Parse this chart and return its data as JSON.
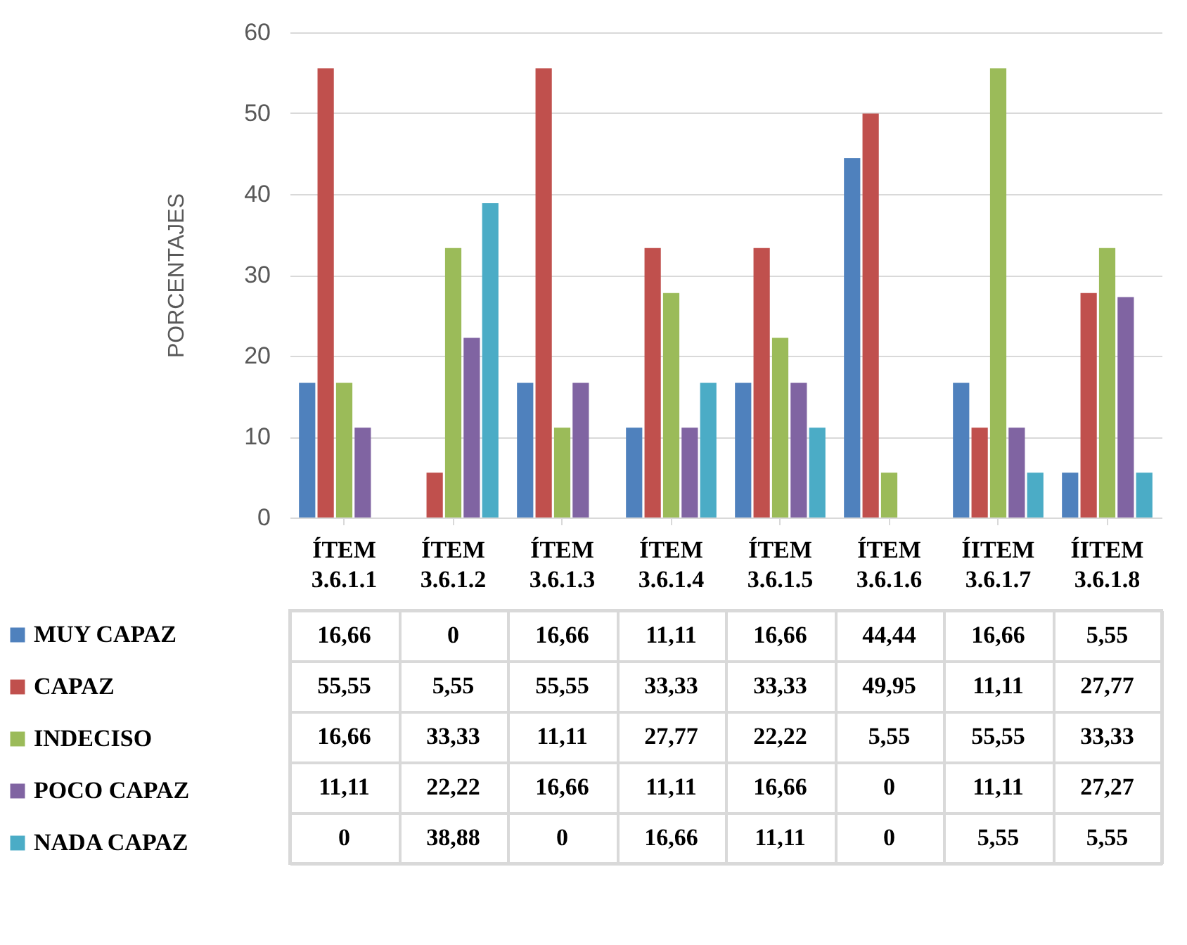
{
  "chart_data": {
    "type": "bar",
    "ylabel": "PORCENTAJES",
    "categories": [
      "ÍTEM 3.6.1.1",
      "ÍTEM 3.6.1.2",
      "ÍTEM 3.6.1.3",
      "ÍTEM 3.6.1.4",
      "ÍTEM 3.6.1.5",
      "ÍTEM 3.6.1.6",
      "ÍITEM 3.6.1.7",
      "ÍITEM 3.6.1.8"
    ],
    "series": [
      {
        "name": "MUY CAPAZ",
        "color": "#4f81bd",
        "values": [
          16.66,
          0,
          16.66,
          11.11,
          16.66,
          44.44,
          16.66,
          5.55
        ],
        "value_labels": [
          "16,66",
          "0",
          "16,66",
          "11,11",
          "16,66",
          "44,44",
          "16,66",
          "5,55"
        ]
      },
      {
        "name": "CAPAZ",
        "color": "#c0504d",
        "values": [
          55.55,
          5.55,
          55.55,
          33.33,
          33.33,
          49.95,
          11.11,
          27.77
        ],
        "value_labels": [
          "55,55",
          "5,55",
          "55,55",
          "33,33",
          "33,33",
          "49,95",
          "11,11",
          "27,77"
        ]
      },
      {
        "name": "INDECISO",
        "color": "#9bbb59",
        "values": [
          16.66,
          33.33,
          11.11,
          27.77,
          22.22,
          5.55,
          55.55,
          33.33
        ],
        "value_labels": [
          "16,66",
          "33,33",
          "11,11",
          "27,77",
          "22,22",
          "5,55",
          "55,55",
          "33,33"
        ]
      },
      {
        "name": "POCO CAPAZ",
        "color": "#8064a2",
        "values": [
          11.11,
          22.22,
          16.66,
          11.11,
          16.66,
          0,
          11.11,
          27.27
        ],
        "value_labels": [
          "11,11",
          "22,22",
          "16,66",
          "11,11",
          "16,66",
          "0",
          "11,11",
          "27,27"
        ]
      },
      {
        "name": "NADA CAPAZ",
        "color": "#4bacc6",
        "values": [
          0,
          38.88,
          0,
          16.66,
          11.11,
          0,
          5.55,
          5.55
        ],
        "value_labels": [
          "0",
          "38,88",
          "0",
          "16,66",
          "11,11",
          "0",
          "5,55",
          "5,55"
        ]
      }
    ],
    "ylim": [
      0,
      60
    ],
    "yticks": [
      0,
      10,
      20,
      30,
      40,
      50,
      60
    ],
    "grid": "y",
    "legend": "bottom left"
  }
}
